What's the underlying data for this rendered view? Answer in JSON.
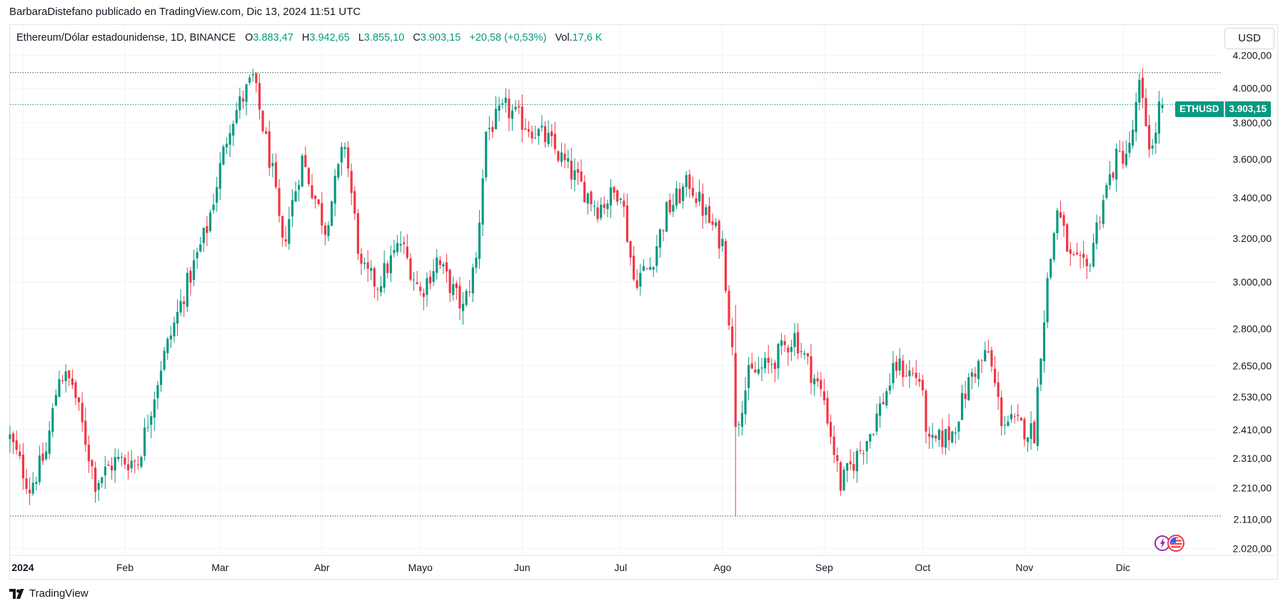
{
  "header": {
    "published_by": "BarbaraDistefano publicado en TradingView.com, Dic 13, 2024 11:51 UTC"
  },
  "legend": {
    "symbol": "Ethereum/Dólar estadounidense, 1D, BINANCE",
    "open_label": "O",
    "open": "3.883,47",
    "high_label": "H",
    "high": "3.942,65",
    "low_label": "L",
    "low": "3.855,10",
    "close_label": "C",
    "close": "3.903,15",
    "change": "+20,58 (+0,53%)",
    "volume_label": "Vol.",
    "volume": "17,6 K"
  },
  "currency_button": "USD",
  "price_tag": {
    "symbol": "ETHUSD",
    "value": "3.903,15"
  },
  "brand": {
    "name": "TradingView"
  },
  "colors": {
    "up": "#089981",
    "down": "#f23645",
    "grid": "#f0f3fa",
    "axis_text": "#131722"
  },
  "icons": [
    "tradingview-logo-icon",
    "economic-event-icon",
    "us-flag-event-icon"
  ],
  "chart_data": {
    "type": "candlestick",
    "symbol": "ETHUSD",
    "interval": "1D",
    "scale": "log",
    "y_ticks": [
      2020,
      2110,
      2210,
      2310,
      2410,
      2530,
      2650,
      2800,
      3000,
      3200,
      3400,
      3600,
      3800,
      4000,
      4200
    ],
    "y_tick_labels": [
      "2.020,00",
      "2.110,00",
      "2.210,00",
      "2.310,00",
      "2.410,00",
      "2.530,00",
      "2.650,00",
      "2.800,00",
      "3.000,00",
      "3.200,00",
      "3.400,00",
      "3.600,00",
      "3.800,00",
      "4.000,00",
      "4.200,00"
    ],
    "x_ticks": [
      {
        "label": "2024",
        "date": "2024-01-01",
        "bold": true
      },
      {
        "label": "Feb",
        "date": "2024-02-01"
      },
      {
        "label": "Mar",
        "date": "2024-03-01"
      },
      {
        "label": "Abr",
        "date": "2024-04-01"
      },
      {
        "label": "Mayo",
        "date": "2024-05-01"
      },
      {
        "label": "Jun",
        "date": "2024-06-01"
      },
      {
        "label": "Jul",
        "date": "2024-07-01"
      },
      {
        "label": "Ago",
        "date": "2024-08-01"
      },
      {
        "label": "Sep",
        "date": "2024-09-01"
      },
      {
        "label": "Oct",
        "date": "2024-10-01"
      },
      {
        "label": "Nov",
        "date": "2024-11-01"
      },
      {
        "label": "Dic",
        "date": "2024-12-01"
      }
    ],
    "x_range": [
      "2023-12-28",
      "2024-12-13"
    ],
    "y_range": [
      2000,
      4260
    ],
    "horizontal_lines": [
      {
        "value": 4093,
        "style": "dotted",
        "color": "#434651"
      },
      {
        "value": 3903.15,
        "style": "dotted",
        "color": "#089981"
      },
      {
        "value": 2120,
        "style": "dotted",
        "color": "#434651"
      }
    ],
    "anchors": [
      {
        "date": "2023-12-28",
        "close": 2380
      },
      {
        "date": "2024-01-03",
        "close": 2210
      },
      {
        "date": "2024-01-08",
        "close": 2330
      },
      {
        "date": "2024-01-12",
        "close": 2620
      },
      {
        "date": "2024-01-16",
        "close": 2580
      },
      {
        "date": "2024-01-23",
        "close": 2230
      },
      {
        "date": "2024-01-29",
        "close": 2300
      },
      {
        "date": "2024-02-05",
        "close": 2300
      },
      {
        "date": "2024-02-12",
        "close": 2650
      },
      {
        "date": "2024-02-19",
        "close": 2950
      },
      {
        "date": "2024-02-26",
        "close": 3250
      },
      {
        "date": "2024-03-04",
        "close": 3800
      },
      {
        "date": "2024-03-11",
        "close": 4060
      },
      {
        "date": "2024-03-17",
        "close": 3520
      },
      {
        "date": "2024-03-20",
        "close": 3160
      },
      {
        "date": "2024-03-26",
        "close": 3600
      },
      {
        "date": "2024-04-02",
        "close": 3250
      },
      {
        "date": "2024-04-08",
        "close": 3690
      },
      {
        "date": "2024-04-13",
        "close": 3050
      },
      {
        "date": "2024-04-18",
        "close": 2990
      },
      {
        "date": "2024-04-25",
        "close": 3180
      },
      {
        "date": "2024-05-01",
        "close": 2950
      },
      {
        "date": "2024-05-06",
        "close": 3100
      },
      {
        "date": "2024-05-14",
        "close": 2880
      },
      {
        "date": "2024-05-18",
        "close": 3100
      },
      {
        "date": "2024-05-21",
        "close": 3750
      },
      {
        "date": "2024-05-27",
        "close": 3880
      },
      {
        "date": "2024-06-03",
        "close": 3780
      },
      {
        "date": "2024-06-09",
        "close": 3700
      },
      {
        "date": "2024-06-15",
        "close": 3550
      },
      {
        "date": "2024-06-24",
        "close": 3350
      },
      {
        "date": "2024-07-01",
        "close": 3450
      },
      {
        "date": "2024-07-05",
        "close": 3010
      },
      {
        "date": "2024-07-10",
        "close": 3070
      },
      {
        "date": "2024-07-15",
        "close": 3330
      },
      {
        "date": "2024-07-22",
        "close": 3480
      },
      {
        "date": "2024-07-28",
        "close": 3280
      },
      {
        "date": "2024-08-01",
        "close": 3180
      },
      {
        "date": "2024-08-04",
        "close": 2700
      },
      {
        "date": "2024-08-05",
        "close": 2420
      },
      {
        "date": "2024-08-09",
        "close": 2610
      },
      {
        "date": "2024-08-15",
        "close": 2650
      },
      {
        "date": "2024-08-23",
        "close": 2770
      },
      {
        "date": "2024-09-01",
        "close": 2520
      },
      {
        "date": "2024-09-06",
        "close": 2220
      },
      {
        "date": "2024-09-15",
        "close": 2400
      },
      {
        "date": "2024-09-23",
        "close": 2650
      },
      {
        "date": "2024-09-30",
        "close": 2600
      },
      {
        "date": "2024-10-03",
        "close": 2350
      },
      {
        "date": "2024-10-10",
        "close": 2400
      },
      {
        "date": "2024-10-16",
        "close": 2620
      },
      {
        "date": "2024-10-21",
        "close": 2700
      },
      {
        "date": "2024-10-25",
        "close": 2450
      },
      {
        "date": "2024-11-04",
        "close": 2400
      },
      {
        "date": "2024-11-06",
        "close": 2720
      },
      {
        "date": "2024-11-08",
        "close": 3000
      },
      {
        "date": "2024-11-11",
        "close": 3350
      },
      {
        "date": "2024-11-15",
        "close": 3100
      },
      {
        "date": "2024-11-20",
        "close": 3050
      },
      {
        "date": "2024-11-25",
        "close": 3400
      },
      {
        "date": "2024-11-29",
        "close": 3600
      },
      {
        "date": "2024-12-03",
        "close": 3650
      },
      {
        "date": "2024-12-06",
        "close": 4000
      },
      {
        "date": "2024-12-09",
        "close": 3700
      },
      {
        "date": "2024-12-10",
        "close": 3650
      },
      {
        "date": "2024-12-12",
        "close": 3883.47
      },
      {
        "date": "2024-12-13",
        "close": 3903.15
      }
    ]
  }
}
